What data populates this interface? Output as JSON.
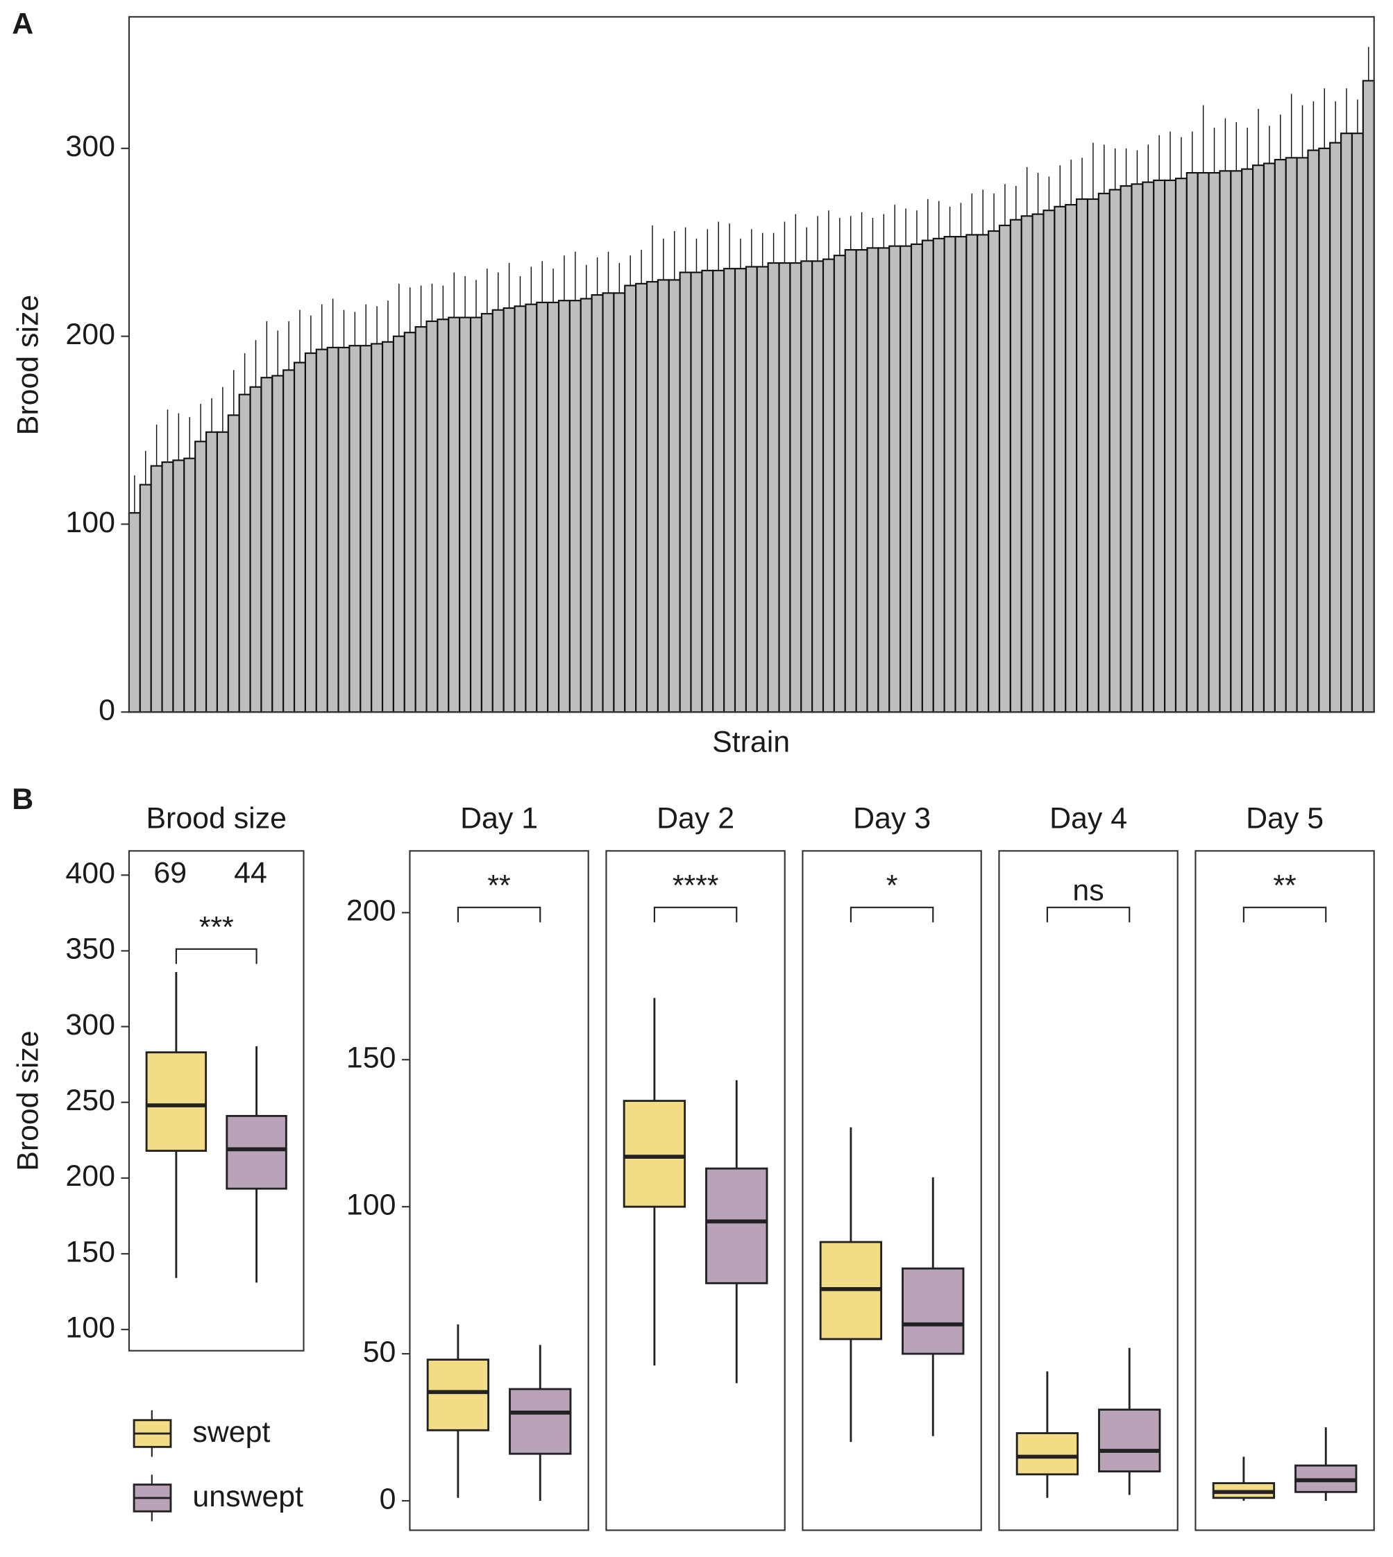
{
  "chart_data": [
    {
      "type": "bar",
      "panel_label": "A",
      "ylabel": "Brood size",
      "xlabel": "Strain",
      "color": "#bebebe",
      "ylim": [
        0,
        370
      ],
      "yticks": [
        0,
        100,
        200,
        300
      ],
      "values": [
        106,
        121,
        131,
        133,
        134,
        135,
        144,
        149,
        149,
        158,
        169,
        173,
        178,
        179,
        182,
        186,
        191,
        193,
        194,
        194,
        195,
        195,
        196,
        197,
        200,
        202,
        205,
        208,
        209,
        210,
        210,
        210,
        212,
        214,
        215,
        216,
        217,
        218,
        218,
        219,
        219,
        220,
        222,
        223,
        223,
        227,
        228,
        229,
        230,
        230,
        234,
        234,
        235,
        235,
        236,
        236,
        237,
        237,
        239,
        239,
        239,
        240,
        240,
        241,
        243,
        246,
        246,
        247,
        247,
        248,
        248,
        249,
        251,
        252,
        253,
        253,
        254,
        254,
        256,
        259,
        262,
        264,
        265,
        267,
        269,
        270,
        273,
        273,
        276,
        278,
        280,
        281,
        282,
        283,
        283,
        284,
        287,
        287,
        287,
        288,
        288,
        289,
        291,
        292,
        294,
        295,
        295,
        299,
        300,
        303,
        308,
        308,
        336
      ],
      "errors": [
        20,
        18,
        22,
        28,
        25,
        22,
        20,
        18,
        24,
        24,
        22,
        25,
        30,
        24,
        26,
        28,
        20,
        24,
        26,
        20,
        18,
        22,
        20,
        22,
        28,
        24,
        22,
        20,
        18,
        24,
        22,
        20,
        24,
        20,
        24,
        16,
        20,
        22,
        18,
        24,
        26,
        18,
        20,
        22,
        16,
        16,
        18,
        30,
        22,
        26,
        24,
        18,
        22,
        26,
        24,
        16,
        20,
        18,
        16,
        22,
        26,
        18,
        24,
        26,
        20,
        18,
        20,
        16,
        18,
        22,
        20,
        18,
        22,
        20,
        16,
        18,
        22,
        24,
        20,
        22,
        18,
        26,
        22,
        18,
        22,
        24,
        22,
        30,
        26,
        22,
        20,
        18,
        20,
        24,
        26,
        22,
        22,
        36,
        24,
        28,
        26,
        22,
        30,
        20,
        24,
        34,
        28,
        26,
        32,
        22,
        24,
        18,
        18
      ]
    },
    {
      "type": "box",
      "panel_label": "B",
      "ylabel": "Brood size",
      "groups": [
        {
          "name": "swept",
          "color": "#f2dc85"
        },
        {
          "name": "unswept",
          "color": "#b9a3b8"
        }
      ],
      "facets": [
        {
          "title": "Brood size",
          "ylim": [
            86,
            416
          ],
          "yticks": [
            100,
            150,
            200,
            250,
            300,
            350,
            400
          ],
          "counts": [
            69,
            44
          ],
          "significance": "***",
          "boxes": [
            {
              "low": 134,
              "q1": 218,
              "median": 248,
              "q3": 283,
              "high": 336
            },
            {
              "low": 131,
              "q1": 193,
              "median": 219,
              "q3": 241,
              "high": 287
            }
          ]
        },
        {
          "title": "Day 1",
          "ylim": [
            -10,
            221
          ],
          "yticks": [
            0,
            50,
            100,
            150,
            200
          ],
          "significance": "**",
          "boxes": [
            {
              "low": 1,
              "q1": 24,
              "median": 37,
              "q3": 48,
              "high": 60
            },
            {
              "low": 0,
              "q1": 16,
              "median": 30,
              "q3": 38,
              "high": 53
            }
          ]
        },
        {
          "title": "Day 2",
          "ylim": [
            -10,
            221
          ],
          "significance": "****",
          "boxes": [
            {
              "low": 46,
              "q1": 100,
              "median": 117,
              "q3": 136,
              "high": 171
            },
            {
              "low": 40,
              "q1": 74,
              "median": 95,
              "q3": 113,
              "high": 143
            }
          ]
        },
        {
          "title": "Day 3",
          "ylim": [
            -10,
            221
          ],
          "significance": "*",
          "boxes": [
            {
              "low": 20,
              "q1": 55,
              "median": 72,
              "q3": 88,
              "high": 127
            },
            {
              "low": 22,
              "q1": 50,
              "median": 60,
              "q3": 79,
              "high": 110
            }
          ]
        },
        {
          "title": "Day 4",
          "ylim": [
            -10,
            221
          ],
          "significance": "ns",
          "boxes": [
            {
              "low": 1,
              "q1": 9,
              "median": 15,
              "q3": 23,
              "high": 44
            },
            {
              "low": 2,
              "q1": 10,
              "median": 17,
              "q3": 31,
              "high": 52
            }
          ]
        },
        {
          "title": "Day 5",
          "ylim": [
            -10,
            221
          ],
          "significance": "**",
          "boxes": [
            {
              "low": 0,
              "q1": 1,
              "median": 3,
              "q3": 6,
              "high": 15
            },
            {
              "low": 0,
              "q1": 3,
              "median": 7,
              "q3": 12,
              "high": 25
            }
          ]
        }
      ]
    }
  ]
}
